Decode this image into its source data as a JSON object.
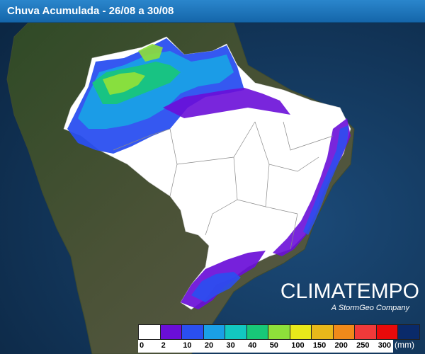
{
  "header": {
    "title": "Chuva Acumulada - 26/08 a 30/08"
  },
  "brand": {
    "name": "CLIMATEMPO",
    "subtitle": "A StormGeo Company"
  },
  "legend": {
    "unit": "(mm)",
    "ticks": [
      "0",
      "2",
      "10",
      "20",
      "30",
      "40",
      "50",
      "100",
      "150",
      "200",
      "250",
      "300"
    ],
    "colors": [
      "#ffffff",
      "#6a0ed8",
      "#2a4ff0",
      "#1aa0e6",
      "#12c8c0",
      "#18c878",
      "#8ee03a",
      "#e8e81a",
      "#e8b81a",
      "#f08a1a",
      "#f03a3a",
      "#e80a0a",
      "#0a2a6a"
    ]
  },
  "map": {
    "ocean_color": "#15355a",
    "land_color": "#3a4a32",
    "brazil_color": "#ffffff",
    "region": "Brazil"
  }
}
